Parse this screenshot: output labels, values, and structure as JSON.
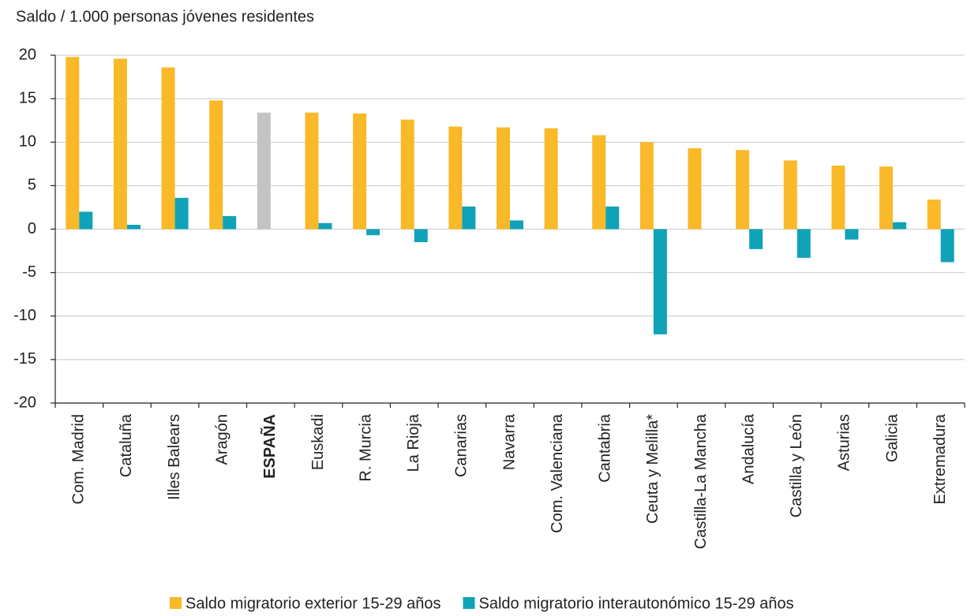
{
  "chart_data": {
    "type": "bar",
    "ylabel": "Saldo / 1.000 personas jóvenes residentes",
    "categories": [
      "Com. Madrid",
      "Cataluña",
      "Illes Balears",
      "Aragón",
      "ESPAÑA",
      "Euskadi",
      "R. Murcia",
      "La Rioja",
      "Canarias",
      "Navarra",
      "Com. Valenciana",
      "Cantabria",
      "Ceuta y Melilla*",
      "Castilla-La Mancha",
      "Andalucía",
      "Castilla y León",
      "Asturias",
      "Galicia",
      "Extremadura"
    ],
    "series": [
      {
        "name": "Saldo migratorio exterior 15-29 años",
        "color": "#f9b928",
        "colors": [
          "#f9b928",
          "#f9b928",
          "#f9b928",
          "#f9b928",
          "#c3c3c3",
          "#f9b928",
          "#f9b928",
          "#f9b928",
          "#f9b928",
          "#f9b928",
          "#f9b928",
          "#f9b928",
          "#f9b928",
          "#f9b928",
          "#f9b928",
          "#f9b928",
          "#f9b928",
          "#f9b928",
          "#f9b928"
        ],
        "values": [
          19.8,
          19.6,
          18.6,
          14.8,
          13.4,
          13.4,
          13.3,
          12.6,
          11.8,
          11.7,
          11.6,
          10.8,
          10.0,
          9.3,
          9.1,
          7.9,
          7.3,
          7.2,
          3.4
        ]
      },
      {
        "name": "Saldo migratorio interautonómico 15-29 años",
        "color": "#10a3b8",
        "values": [
          2.0,
          0.5,
          3.6,
          1.5,
          null,
          0.7,
          -0.7,
          -1.5,
          2.6,
          1.0,
          0,
          2.6,
          -12.1,
          0,
          -2.3,
          -3.3,
          -1.2,
          0.8,
          -3.8
        ]
      }
    ],
    "ylim": [
      -20,
      20
    ],
    "yticks": [
      -20,
      -15,
      -10,
      -5,
      0,
      5,
      10,
      15,
      20
    ],
    "grid": true
  }
}
